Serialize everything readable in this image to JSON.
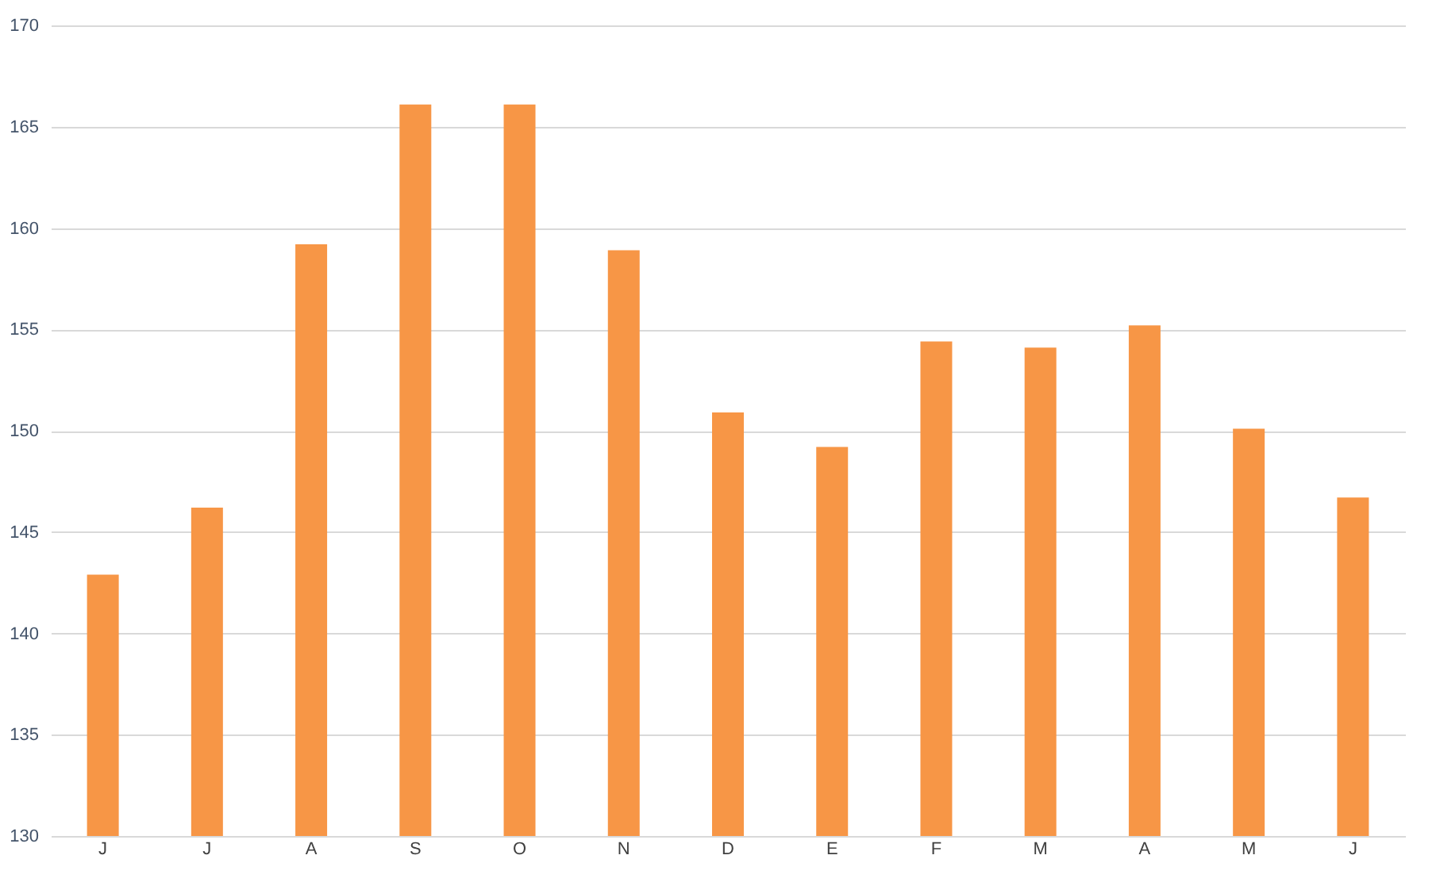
{
  "chart_data": {
    "type": "bar",
    "categories": [
      "J",
      "J",
      "A",
      "S",
      "O",
      "N",
      "D",
      "E",
      "F",
      "M",
      "A",
      "M",
      "J"
    ],
    "values": [
      142.9,
      146.2,
      159.2,
      166.1,
      166.1,
      158.9,
      150.9,
      149.2,
      154.4,
      154.1,
      155.2,
      150.1,
      146.7
    ],
    "color": "#f79646",
    "ylim": [
      130,
      170
    ],
    "yticks": [
      130,
      135,
      140,
      145,
      150,
      155,
      160,
      165,
      170
    ],
    "grid": "y"
  }
}
